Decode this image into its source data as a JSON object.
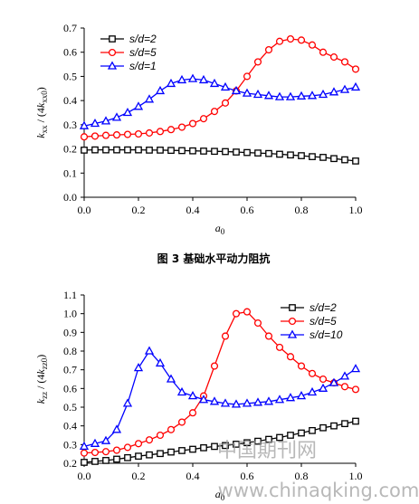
{
  "figure": {
    "caption": "图 3 基础水平动力阻抗",
    "watermark_cn": "中国期刊网",
    "watermark_url": "www.chinaqking.com"
  },
  "chart_data": [
    {
      "type": "line",
      "xlabel": "a0",
      "ylabel": "kxx / (4kxx0)",
      "xlim": [
        0,
        1.0
      ],
      "ylim": [
        0,
        0.7
      ],
      "xticks": [
        "0.0",
        "0.2",
        "0.4",
        "0.6",
        "0.8",
        "1.0"
      ],
      "yticks": [
        "0.0",
        "0.1",
        "0.2",
        "0.3",
        "0.4",
        "0.5",
        "0.6",
        "0.7"
      ],
      "legend_position": "top-left",
      "x": [
        0,
        0.04,
        0.08,
        0.12,
        0.16,
        0.2,
        0.24,
        0.28,
        0.32,
        0.36,
        0.4,
        0.44,
        0.48,
        0.52,
        0.56,
        0.6,
        0.64,
        0.68,
        0.72,
        0.76,
        0.8,
        0.84,
        0.88,
        0.92,
        0.96,
        1.0
      ],
      "series": [
        {
          "name": "s/d=2",
          "color": "#000000",
          "marker": "square",
          "values": [
            0.195,
            0.196,
            0.196,
            0.196,
            0.196,
            0.196,
            0.195,
            0.195,
            0.194,
            0.193,
            0.192,
            0.191,
            0.19,
            0.189,
            0.187,
            0.185,
            0.183,
            0.181,
            0.178,
            0.175,
            0.172,
            0.168,
            0.165,
            0.16,
            0.155,
            0.15
          ]
        },
        {
          "name": "s/d=5",
          "color": "#ff0000",
          "marker": "circle",
          "values": [
            0.25,
            0.253,
            0.256,
            0.258,
            0.26,
            0.262,
            0.266,
            0.272,
            0.28,
            0.29,
            0.305,
            0.325,
            0.355,
            0.39,
            0.44,
            0.5,
            0.56,
            0.61,
            0.645,
            0.655,
            0.65,
            0.63,
            0.6,
            0.58,
            0.56,
            0.53
          ]
        },
        {
          "name": "s/d=1",
          "color": "#0000ff",
          "marker": "triangle",
          "values": [
            0.295,
            0.305,
            0.315,
            0.33,
            0.35,
            0.375,
            0.405,
            0.44,
            0.47,
            0.485,
            0.49,
            0.485,
            0.47,
            0.455,
            0.44,
            0.43,
            0.425,
            0.42,
            0.415,
            0.415,
            0.418,
            0.42,
            0.425,
            0.435,
            0.445,
            0.455
          ]
        }
      ]
    },
    {
      "type": "line",
      "xlabel": "a0",
      "ylabel": "kzz / (4kzz0)",
      "xlim": [
        0,
        1.0
      ],
      "ylim": [
        0.2,
        1.1
      ],
      "xticks": [
        "0.0",
        "0.2",
        "0.4",
        "0.6",
        "0.8",
        "1.0"
      ],
      "yticks": [
        "0.2",
        "0.3",
        "0.4",
        "0.5",
        "0.6",
        "0.7",
        "0.8",
        "0.9",
        "1.0",
        "1.1"
      ],
      "legend_position": "top-right",
      "x": [
        0,
        0.04,
        0.08,
        0.12,
        0.16,
        0.2,
        0.24,
        0.28,
        0.32,
        0.36,
        0.4,
        0.44,
        0.48,
        0.52,
        0.56,
        0.6,
        0.64,
        0.68,
        0.72,
        0.76,
        0.8,
        0.84,
        0.88,
        0.92,
        0.96,
        1.0
      ],
      "series": [
        {
          "name": "s/d=2",
          "color": "#000000",
          "marker": "square",
          "values": [
            0.205,
            0.21,
            0.215,
            0.222,
            0.23,
            0.238,
            0.245,
            0.252,
            0.26,
            0.268,
            0.275,
            0.283,
            0.29,
            0.295,
            0.302,
            0.31,
            0.318,
            0.328,
            0.338,
            0.35,
            0.362,
            0.375,
            0.39,
            0.4,
            0.412,
            0.425
          ]
        },
        {
          "name": "s/d=5",
          "color": "#ff0000",
          "marker": "circle",
          "values": [
            0.255,
            0.258,
            0.262,
            0.27,
            0.285,
            0.305,
            0.325,
            0.35,
            0.38,
            0.42,
            0.47,
            0.56,
            0.72,
            0.88,
            1.0,
            1.01,
            0.95,
            0.88,
            0.82,
            0.77,
            0.72,
            0.68,
            0.65,
            0.63,
            0.61,
            0.595
          ]
        },
        {
          "name": "s/d=10",
          "color": "#0000ff",
          "marker": "triangle",
          "values": [
            0.29,
            0.305,
            0.32,
            0.38,
            0.52,
            0.71,
            0.8,
            0.735,
            0.65,
            0.58,
            0.56,
            0.54,
            0.53,
            0.52,
            0.515,
            0.52,
            0.525,
            0.53,
            0.54,
            0.55,
            0.56,
            0.58,
            0.6,
            0.63,
            0.665,
            0.705
          ]
        }
      ]
    }
  ]
}
